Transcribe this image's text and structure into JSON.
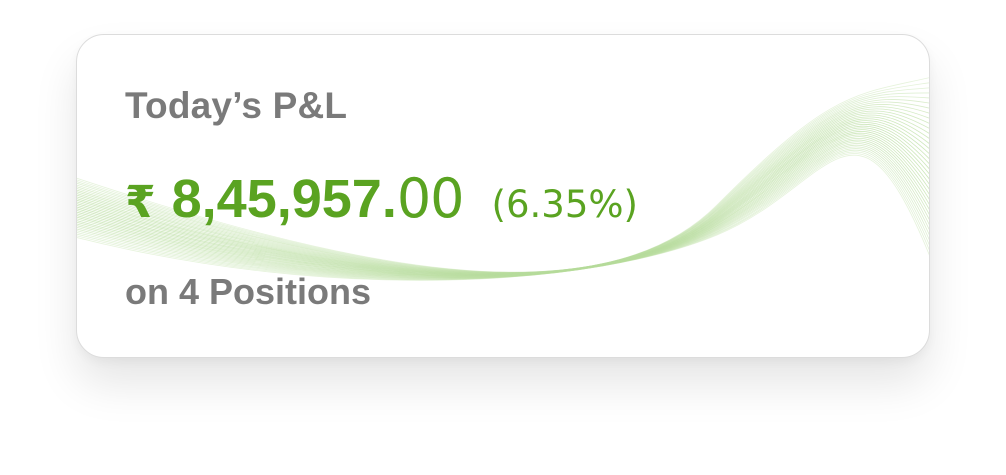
{
  "card": {
    "title": "Today’s P&L",
    "currency_symbol": "₹",
    "amount_integer": "8,45,957.",
    "amount_decimal": "00",
    "percent_change": "(6.35%)",
    "positions_text": "on 4 Positions"
  },
  "colors": {
    "accent_green": "#5aa321",
    "label_gray": "#7a7a7a",
    "card_border": "#dcdcdc",
    "wave_line": "#b7dc9c"
  },
  "icons": {
    "background": "wave-lines-decoration"
  }
}
